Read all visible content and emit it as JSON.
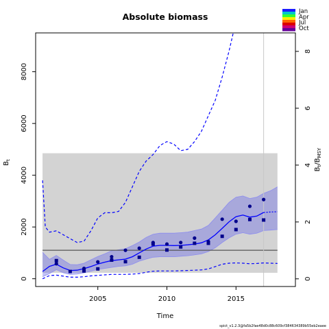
{
  "chart_data": {
    "type": "line",
    "title": "Absolute biomass",
    "xlabel": "Time",
    "ylabel_left_main": "B",
    "ylabel_left_sub": "t",
    "ylabel_right_main": "B",
    "ylabel_right_sub1": "t",
    "ylabel_right_sep": "/B",
    "ylabel_right_sub2": "MSY",
    "xlim": [
      2000.5,
      2019.3
    ],
    "ylim": [
      -300,
      9500
    ],
    "right_axis_ylim_ratio": [
      -0.27,
      8.65
    ],
    "grid": false,
    "legend_position": "top-right",
    "x_ticks": [
      "2005",
      "2010",
      "2015"
    ],
    "y_ticks": [
      "0",
      "2000",
      "4000",
      "6000",
      "8000"
    ],
    "y2_ticks": [
      "0",
      "2",
      "4",
      "6",
      "8"
    ],
    "legend": {
      "labels": [
        "Jan",
        "Apr",
        "Jul",
        "Oct"
      ],
      "colors": [
        "#1a1aff",
        "#00c8c8",
        "#33ff33",
        "#ffee00",
        "#ff6600",
        "#dd0000",
        "#cc0077",
        "#660099"
      ]
    },
    "bmsy_band": {
      "x_start": 2001.0,
      "x_end": 2018.0,
      "lower": 230,
      "upper": 4850
    },
    "bmsy_line": 1100,
    "vertical_line_x": 2017.0,
    "estimate": {
      "x": [
        2001.0,
        2001.5,
        2002.0,
        2002.5,
        2003.0,
        2003.5,
        2004.0,
        2004.5,
        2005.0,
        2005.5,
        2006.0,
        2006.5,
        2007.0,
        2007.5,
        2008.0,
        2008.5,
        2009.0,
        2009.5,
        2010.0,
        2010.5,
        2011.0,
        2011.5,
        2012.0,
        2012.5,
        2013.0,
        2013.5,
        2014.0,
        2014.5,
        2015.0,
        2015.5,
        2016.0,
        2016.5,
        2017.0
      ],
      "y": [
        280,
        480,
        560,
        420,
        320,
        330,
        390,
        470,
        570,
        640,
        700,
        730,
        760,
        850,
        1000,
        1150,
        1260,
        1290,
        1290,
        1280,
        1290,
        1310,
        1340,
        1390,
        1500,
        1700,
        1950,
        2200,
        2400,
        2460,
        2380,
        2420,
        2560
      ]
    },
    "estimate_forecast": {
      "x": [
        2017.0,
        2017.5,
        2018.0
      ],
      "y": [
        2560,
        2580,
        2590
      ]
    },
    "ci_lower": [
      80,
      200,
      350,
      230,
      170,
      180,
      230,
      290,
      360,
      400,
      440,
      480,
      500,
      560,
      680,
      760,
      830,
      850,
      850,
      850,
      870,
      890,
      920,
      960,
      1050,
      1200,
      1400,
      1580,
      1720,
      1780,
      1720,
      1760,
      1860,
      1880,
      1900
    ],
    "ci_upper": [
      1020,
      750,
      900,
      720,
      550,
      540,
      600,
      730,
      860,
      960,
      1080,
      1120,
      1160,
      1280,
      1420,
      1600,
      1720,
      1760,
      1760,
      1760,
      1780,
      1800,
      1860,
      1920,
      2060,
      2350,
      2650,
      2950,
      3150,
      3200,
      3100,
      3150,
      3300,
      3400,
      3550
    ],
    "band_x": [
      2001.0,
      2001.5,
      2002.0,
      2002.5,
      2003.0,
      2003.5,
      2004.0,
      2004.5,
      2005.0,
      2005.5,
      2006.0,
      2006.5,
      2007.0,
      2007.5,
      2008.0,
      2008.5,
      2009.0,
      2009.5,
      2010.0,
      2010.5,
      2011.0,
      2011.5,
      2012.0,
      2012.5,
      2013.0,
      2013.5,
      2014.0,
      2014.5,
      2015.0,
      2015.5,
      2016.0,
      2016.5,
      2017.0,
      2017.5,
      2018.0
    ],
    "dashed_upper": {
      "x": [
        2001.0,
        2001.2,
        2001.5,
        2002.0,
        2002.5,
        2003.0,
        2003.5,
        2004.0,
        2004.5,
        2005.0,
        2005.5,
        2006.0,
        2006.5,
        2007.0,
        2007.5,
        2008.0,
        2008.5,
        2009.0,
        2009.5,
        2010.0,
        2010.5,
        2011.0,
        2011.5,
        2012.0,
        2012.5,
        2013.0,
        2013.5,
        2014.0,
        2014.5,
        2014.8
      ],
      "y": [
        3800,
        2000,
        1800,
        1850,
        1700,
        1550,
        1400,
        1450,
        1850,
        2350,
        2550,
        2550,
        2600,
        2950,
        3550,
        4150,
        4550,
        4800,
        5150,
        5300,
        5200,
        4950,
        5000,
        5300,
        5700,
        6300,
        6900,
        7800,
        8800,
        9500
      ]
    },
    "dashed_lower": {
      "x": [
        2001.0,
        2001.5,
        2002.0,
        2002.5,
        2003.0,
        2003.5,
        2004.0,
        2004.5,
        2005.0,
        2005.5,
        2006.0,
        2006.5,
        2007.0,
        2007.5,
        2008.0,
        2008.5,
        2009.0,
        2009.5,
        2010.0,
        2010.5,
        2011.0,
        2011.5,
        2012.0,
        2012.5,
        2013.0,
        2013.5,
        2014.0,
        2014.5,
        2015.0,
        2015.5,
        2016.0,
        2016.5,
        2017.0,
        2017.5,
        2018.0
      ],
      "y": [
        0,
        120,
        140,
        100,
        60,
        60,
        80,
        110,
        130,
        150,
        170,
        170,
        170,
        180,
        200,
        250,
        290,
        300,
        300,
        300,
        310,
        320,
        330,
        340,
        380,
        470,
        560,
        600,
        610,
        600,
        580,
        590,
        610,
        600,
        590
      ]
    },
    "observations": {
      "x": [
        2002.0,
        2002.0,
        2003.0,
        2004.0,
        2004.0,
        2005.0,
        2005.0,
        2006.0,
        2006.0,
        2007.0,
        2007.0,
        2008.0,
        2008.0,
        2009.0,
        2009.0,
        2010.0,
        2010.0,
        2011.0,
        2011.0,
        2012.0,
        2012.0,
        2013.0,
        2013.0,
        2014.0,
        2014.0,
        2015.0,
        2015.0,
        2016.0,
        2016.0,
        2017.0,
        2017.0
      ],
      "y": [
        700,
        580,
        280,
        400,
        300,
        650,
        380,
        850,
        720,
        1100,
        660,
        1180,
        830,
        1400,
        1340,
        1340,
        1110,
        1400,
        1230,
        1570,
        1370,
        1440,
        1370,
        2300,
        1640,
        2220,
        1900,
        2800,
        2290,
        3060,
        2270
      ]
    },
    "footer": "spict_v1.2.3@fa5b2fae48d0c88c609cf384634389b55eb2eaee"
  }
}
